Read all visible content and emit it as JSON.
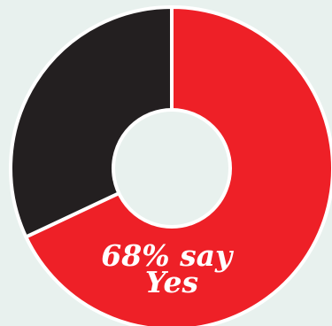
{
  "chart_data": {
    "type": "pie",
    "style": "donut",
    "slices": [
      {
        "value": 68,
        "color": "#ee2027",
        "label_line1": "68% say",
        "label_line2": "Yes"
      },
      {
        "value": 32,
        "color": "#231f20"
      }
    ],
    "background_color": "#e8f1ee",
    "separator_color": "#ffffff"
  }
}
